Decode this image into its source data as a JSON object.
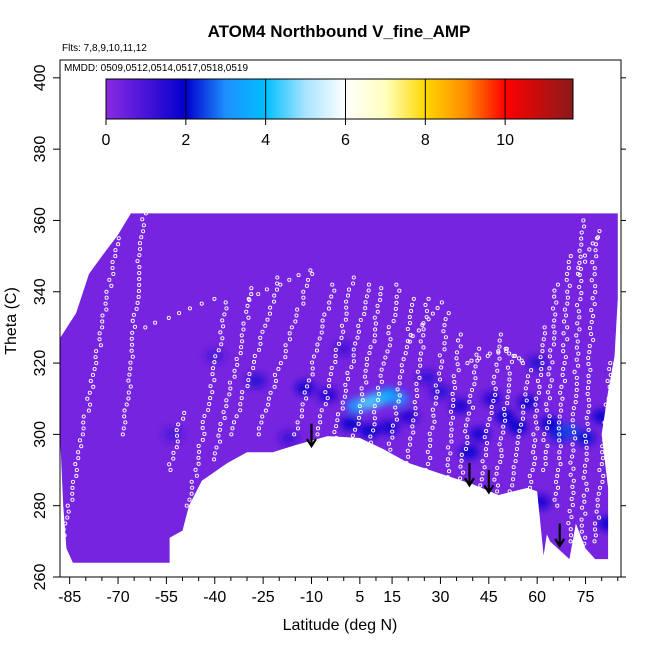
{
  "chart_data": {
    "type": "heatmap",
    "title": "ATOM4 Northbound V_fine_AMP",
    "annotations": {
      "flights": "Flts: 7,8,9,10,11,12",
      "dates": "MMDD: 0509,0512,0514,0517,0518,0519"
    },
    "xlabel": "Latitude (deg N)",
    "ylabel": "Theta (C)",
    "xlim": [
      -88,
      86
    ],
    "ylim": [
      260,
      405
    ],
    "x_ticks": [
      -85,
      -70,
      -55,
      -40,
      -25,
      -10,
      5,
      15,
      30,
      45,
      60,
      75
    ],
    "x_tick_labels": [
      "-85",
      "-70",
      "-55",
      "-40",
      "-25",
      "-10",
      "5",
      "15",
      "30",
      "45",
      "60",
      "75"
    ],
    "y_ticks": [
      260,
      280,
      300,
      320,
      340,
      360,
      380,
      400
    ],
    "y_tick_labels": [
      "260",
      "280",
      "300",
      "320",
      "340",
      "360",
      "380",
      "400"
    ],
    "grid": false,
    "legend": "colorbar at top",
    "colorbar": {
      "range": [
        0,
        11.7
      ],
      "ticks": [
        0,
        2,
        4,
        6,
        8,
        10
      ],
      "tick_labels": [
        "0",
        "2",
        "4",
        "6",
        "8",
        "10"
      ],
      "stops": [
        {
          "value": 0,
          "color": "#8a2be2"
        },
        {
          "value": 1.2,
          "color": "#3a0fd6"
        },
        {
          "value": 2,
          "color": "#0000cd"
        },
        {
          "value": 3,
          "color": "#1e90ff"
        },
        {
          "value": 4,
          "color": "#00bfff"
        },
        {
          "value": 5,
          "color": "#a8e4ff"
        },
        {
          "value": 6,
          "color": "#ffffff"
        },
        {
          "value": 7,
          "color": "#ffffc0"
        },
        {
          "value": 8,
          "color": "#ffd700"
        },
        {
          "value": 9,
          "color": "#ff8c00"
        },
        {
          "value": 10,
          "color": "#ff0000"
        },
        {
          "value": 11.7,
          "color": "#8b1a1a"
        }
      ]
    },
    "data_outline": [
      [
        -88,
        327
      ],
      [
        -83,
        334
      ],
      [
        -79,
        345
      ],
      [
        -75,
        350
      ],
      [
        -70,
        356
      ],
      [
        -66,
        362
      ],
      [
        85,
        362
      ],
      [
        85,
        338
      ],
      [
        84,
        322
      ],
      [
        82,
        312
      ],
      [
        80,
        300
      ],
      [
        82,
        285
      ],
      [
        82,
        265
      ],
      [
        78,
        265
      ],
      [
        75,
        268
      ],
      [
        72,
        275
      ],
      [
        70,
        265
      ],
      [
        64,
        270
      ],
      [
        63,
        272
      ],
      [
        62,
        266
      ],
      [
        60,
        284
      ],
      [
        57,
        285
      ],
      [
        48,
        283
      ],
      [
        40,
        286
      ],
      [
        30,
        289
      ],
      [
        20,
        292
      ],
      [
        12,
        296
      ],
      [
        5,
        299
      ],
      [
        -5,
        299.5
      ],
      [
        -15,
        297
      ],
      [
        -22,
        295
      ],
      [
        -30,
        295
      ],
      [
        -36,
        292
      ],
      [
        -44,
        287
      ],
      [
        -48,
        280
      ],
      [
        -50,
        273
      ],
      [
        -54,
        271
      ],
      [
        -54,
        264
      ],
      [
        -84,
        264
      ],
      [
        -86,
        268
      ],
      [
        -87,
        280
      ],
      [
        -88,
        300
      ]
    ],
    "background_value": 0.3,
    "cells": [
      {
        "lat": -12,
        "theta": 313,
        "value": 1.8
      },
      {
        "lat": -5,
        "theta": 311,
        "value": 1.6
      },
      {
        "lat": 2,
        "theta": 303,
        "value": 2.0
      },
      {
        "lat": 4,
        "theta": 308,
        "value": 3.5
      },
      {
        "lat": 8,
        "theta": 309,
        "value": 4.5
      },
      {
        "lat": 11,
        "theta": 310,
        "value": 4.3
      },
      {
        "lat": 14,
        "theta": 311,
        "value": 3.8
      },
      {
        "lat": 17,
        "theta": 310,
        "value": 3.2
      },
      {
        "lat": 8,
        "theta": 301,
        "value": 2.0
      },
      {
        "lat": 14,
        "theta": 302,
        "value": 1.8
      },
      {
        "lat": 20,
        "theta": 305,
        "value": 1.6
      },
      {
        "lat": 26,
        "theta": 316,
        "value": 1.3
      },
      {
        "lat": 30,
        "theta": 312,
        "value": 1.5
      },
      {
        "lat": 36,
        "theta": 308,
        "value": 1.7
      },
      {
        "lat": 39,
        "theta": 295,
        "value": 1.9
      },
      {
        "lat": 42,
        "theta": 300,
        "value": 1.8
      },
      {
        "lat": 46,
        "theta": 310,
        "value": 1.6
      },
      {
        "lat": 50,
        "theta": 305,
        "value": 1.9
      },
      {
        "lat": 54,
        "theta": 302,
        "value": 2.0
      },
      {
        "lat": 57,
        "theta": 309,
        "value": 1.8
      },
      {
        "lat": 60,
        "theta": 320,
        "value": 1.5
      },
      {
        "lat": 64,
        "theta": 303,
        "value": 2.0
      },
      {
        "lat": 67,
        "theta": 300,
        "value": 2.2
      },
      {
        "lat": 70,
        "theta": 301,
        "value": 2.5
      },
      {
        "lat": 75,
        "theta": 299,
        "value": 2.1
      },
      {
        "lat": 80,
        "theta": 305,
        "value": 2.0
      },
      {
        "lat": 82,
        "theta": 275,
        "value": 2.0
      },
      {
        "lat": -27,
        "theta": 315,
        "value": 1.5
      },
      {
        "lat": -17,
        "theta": 299,
        "value": 1.2
      },
      {
        "lat": 0,
        "theta": 324,
        "value": 1.1
      },
      {
        "lat": -40,
        "theta": 322,
        "value": 1.0
      },
      {
        "lat": -53,
        "theta": 300,
        "value": 1.0
      },
      {
        "lat": 61,
        "theta": 281,
        "value": 1.8
      }
    ],
    "arrows": [
      {
        "lat": -10,
        "theta_top": 303,
        "theta_tip": 297
      },
      {
        "lat": 39,
        "theta_top": 292,
        "theta_tip": 286
      },
      {
        "lat": 45,
        "theta_top": 290,
        "theta_tip": 284
      },
      {
        "lat": 67,
        "theta_top": 275,
        "theta_tip": 269
      }
    ],
    "sample_tracks": [
      {
        "lat_start": -87,
        "theta_start": 270,
        "lat_end": -70,
        "theta_end": 355
      },
      {
        "lat_start": -68,
        "theta_start": 300,
        "lat_end": -62,
        "theta_end": 362
      },
      {
        "lat_start": -48,
        "theta_start": 280,
        "lat_end": -36,
        "theta_end": 337
      },
      {
        "lat_start": -40,
        "theta_start": 293,
        "lat_end": -28,
        "theta_end": 341
      },
      {
        "lat_start": -35,
        "theta_start": 300,
        "lat_end": -20,
        "theta_end": 344
      },
      {
        "lat_start": -27,
        "theta_start": 300,
        "lat_end": -10,
        "theta_end": 345
      },
      {
        "lat_start": -15,
        "theta_start": 300,
        "lat_end": -3,
        "theta_end": 342
      },
      {
        "lat_start": -8,
        "theta_start": 300,
        "lat_end": 3,
        "theta_end": 344
      },
      {
        "lat_start": -3,
        "theta_start": 299,
        "lat_end": 8,
        "theta_end": 342
      },
      {
        "lat_start": 3,
        "theta_start": 298,
        "lat_end": 12,
        "theta_end": 341
      },
      {
        "lat_start": 8,
        "theta_start": 296,
        "lat_end": 17,
        "theta_end": 342
      },
      {
        "lat_start": 14,
        "theta_start": 294,
        "lat_end": 22,
        "theta_end": 338
      },
      {
        "lat_start": 20,
        "theta_start": 292,
        "lat_end": 26,
        "theta_end": 338
      },
      {
        "lat_start": 26,
        "theta_start": 290,
        "lat_end": 32,
        "theta_end": 334
      },
      {
        "lat_start": 32,
        "theta_start": 288,
        "lat_end": 36,
        "theta_end": 328
      },
      {
        "lat_start": 36,
        "theta_start": 286,
        "lat_end": 42,
        "theta_end": 324
      },
      {
        "lat_start": 42,
        "theta_start": 284,
        "lat_end": 49,
        "theta_end": 328
      },
      {
        "lat_start": 47,
        "theta_start": 284,
        "lat_end": 52,
        "theta_end": 322
      },
      {
        "lat_start": 52,
        "theta_start": 284,
        "lat_end": 58,
        "theta_end": 318
      },
      {
        "lat_start": 58,
        "theta_start": 285,
        "lat_end": 62,
        "theta_end": 330
      },
      {
        "lat_start": 62,
        "theta_start": 290,
        "lat_end": 66,
        "theta_end": 342
      },
      {
        "lat_start": 66,
        "theta_start": 280,
        "lat_end": 70,
        "theta_end": 350
      },
      {
        "lat_start": 70,
        "theta_start": 270,
        "lat_end": 74,
        "theta_end": 360
      },
      {
        "lat_start": 74,
        "theta_start": 266,
        "lat_end": 78,
        "theta_end": 355
      },
      {
        "lat_start": 78,
        "theta_start": 270,
        "lat_end": 83,
        "theta_end": 320
      },
      {
        "lat_start": -54,
        "theta_start": 290,
        "lat_end": -50,
        "theta_end": 306
      },
      {
        "lat_start": -62,
        "theta_start": 330,
        "lat_end": -40,
        "theta_end": 338
      },
      {
        "lat_start": -30,
        "theta_start": 338,
        "lat_end": -10,
        "theta_end": 346
      },
      {
        "lat_start": 20,
        "theta_start": 326,
        "lat_end": 30,
        "theta_end": 337
      },
      {
        "lat_start": 38,
        "theta_start": 320,
        "lat_end": 50,
        "theta_end": 324
      },
      {
        "lat_start": 50,
        "theta_start": 324,
        "lat_end": 56,
        "theta_end": 320
      },
      {
        "lat_start": 72,
        "theta_start": 345,
        "lat_end": 80,
        "theta_end": 357
      }
    ]
  }
}
